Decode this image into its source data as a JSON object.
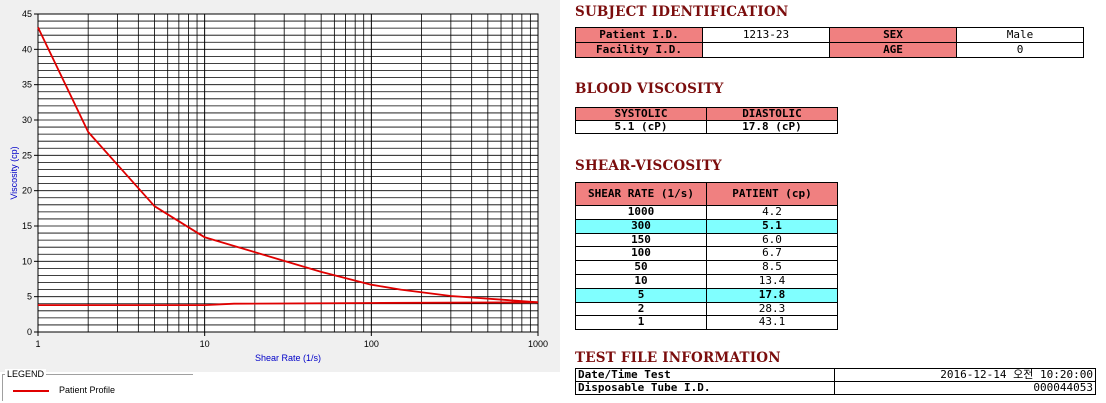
{
  "chart_data": {
    "type": "line",
    "x_scale": "log",
    "xlim": [
      1,
      1000
    ],
    "ylim": [
      0,
      45
    ],
    "xlabel": "Shear Rate (1/s)",
    "ylabel": "Viscosity (cp)",
    "x_ticks": [
      "1",
      "10",
      "100",
      "1000"
    ],
    "y_ticks": [
      "0",
      "5",
      "10",
      "15",
      "20",
      "25",
      "30",
      "35",
      "40",
      "45"
    ],
    "grid": true,
    "series": [
      {
        "name": "Patient Profile",
        "color": "#e00000",
        "x": [
          1,
          2,
          5,
          10,
          50,
          100,
          150,
          300,
          1000
        ],
        "y": [
          43.1,
          28.3,
          17.8,
          13.4,
          8.5,
          6.7,
          6.0,
          5.1,
          4.2
        ]
      },
      {
        "name": "",
        "color": "#e00000",
        "x": [
          1,
          10,
          15,
          100,
          1000
        ],
        "y": [
          3.8,
          3.8,
          4.0,
          4.1,
          4.2
        ]
      }
    ]
  },
  "legend": {
    "title": "LEGEND",
    "items": [
      {
        "label": "Patient Profile",
        "color": "#e00000"
      }
    ]
  },
  "subject": {
    "title": "SUBJECT IDENTIFICATION",
    "patient_id_label": "Patient I.D.",
    "patient_id": "1213-23",
    "sex_label": "SEX",
    "sex": "Male",
    "facility_id_label": "Facility I.D.",
    "facility_id": "",
    "age_label": "AGE",
    "age": "0"
  },
  "blood": {
    "title": "BLOOD VISCOSITY",
    "systolic_label": "SYSTOLIC",
    "diastolic_label": "DIASTOLIC",
    "systolic": "5.1 (cP)",
    "diastolic": "17.8 (cP)"
  },
  "shear": {
    "title": "SHEAR-VISCOSITY",
    "col_rate": "SHEAR RATE (1/s)",
    "col_patient": "PATIENT (cp)",
    "rows": [
      {
        "rate": "1000",
        "value": "4.2"
      },
      {
        "rate": "300",
        "value": "5.1"
      },
      {
        "rate": "150",
        "value": "6.0"
      },
      {
        "rate": "100",
        "value": "6.7"
      },
      {
        "rate": "50",
        "value": "8.5"
      },
      {
        "rate": "10",
        "value": "13.4"
      },
      {
        "rate": "5",
        "value": "17.8"
      },
      {
        "rate": "2",
        "value": "28.3"
      },
      {
        "rate": "1",
        "value": "43.1"
      }
    ]
  },
  "test": {
    "title": "TEST FILE INFORMATION",
    "datetime_label": "Date/Time Test",
    "datetime": "2016-12-14  오전 10:20:00",
    "tube_label": "Disposable Tube I.D.",
    "tube": "000044053"
  }
}
